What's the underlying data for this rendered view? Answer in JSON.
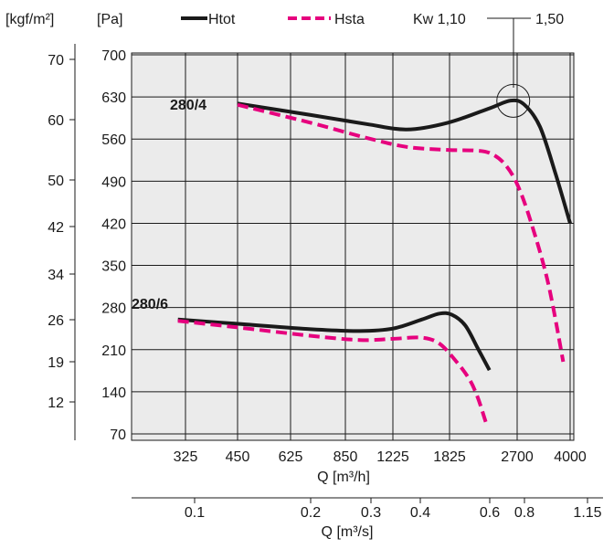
{
  "chart_data": {
    "type": "line",
    "legend": {
      "items": [
        {
          "name": "Htot",
          "color": "#1a1a1a",
          "dash": "solid"
        },
        {
          "name": "Hsta",
          "color": "#e6007e",
          "dash": "dashed"
        }
      ],
      "kw_text": "Kw 1,10",
      "kw_text2": "1,50"
    },
    "units": {
      "left": "[kgf/m²]",
      "pressure": "[Pa]"
    },
    "xlabel_top": "Q [m³/h]",
    "xlabel_bottom": "Q [m³/s]",
    "x_ticks_m3h": [
      "325",
      "450",
      "625",
      "850",
      "1225",
      "1825",
      "2700",
      "4000"
    ],
    "x_ticks_m3s": [
      "0.1",
      "0.2",
      "0.3",
      "0.4",
      "0.6",
      "0.8",
      "1.15"
    ],
    "y_ticks_pa": [
      70,
      140,
      210,
      280,
      350,
      420,
      490,
      560,
      630,
      700
    ],
    "y_ticks_kgf": [
      "12",
      "19",
      "26",
      "34",
      "42",
      "50",
      "60",
      "70"
    ],
    "ylim_pa": [
      70,
      700
    ],
    "grid": true,
    "curve_groups": [
      {
        "label": "280/4",
        "series": [
          {
            "name": "Htot",
            "x": [
              450,
              700,
              1000,
              1350,
              1800,
              2300,
              2600,
              2850,
              3200,
              3600,
              4000
            ],
            "y": [
              619,
              600,
              585,
              576,
              587,
              611,
              624,
              617,
              580,
              500,
              420
            ]
          },
          {
            "name": "Hsta",
            "x": [
              450,
              700,
              1000,
              1350,
              1800,
              2100,
              2300,
              2500,
              2700,
              3000,
              3400,
              3800
            ],
            "y": [
              617,
              587,
              562,
              547,
              542,
              541,
              537,
              520,
              485,
              420,
              320,
              190
            ]
          }
        ]
      },
      {
        "label": "280/6",
        "series": [
          {
            "name": "Htot",
            "x": [
              310,
              450,
              700,
              950,
              1225,
              1500,
              1700,
              1850,
              2000,
              2150,
              2300
            ],
            "y": [
              260,
              253,
              244,
              241,
              245,
              260,
              270,
              268,
              250,
              212,
              176
            ]
          },
          {
            "name": "Hsta",
            "x": [
              310,
              450,
              700,
              950,
              1225,
              1500,
              1700,
              1900,
              2050,
              2150,
              2250
            ],
            "y": [
              258,
              247,
              233,
              226,
              228,
              230,
              220,
              190,
              160,
              130,
              90
            ]
          }
        ]
      }
    ],
    "annotation": {
      "type": "circle",
      "x": 2640,
      "y": 622
    }
  }
}
